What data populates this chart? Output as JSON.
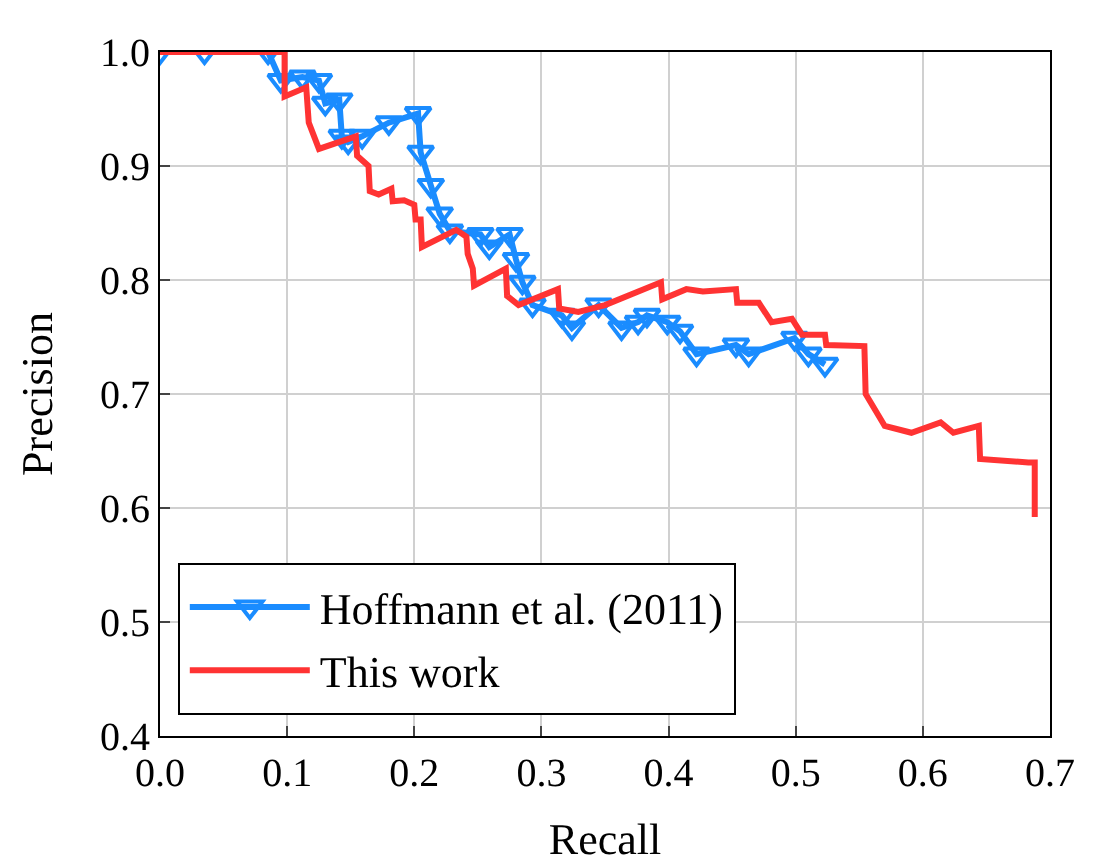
{
  "chart_data": {
    "type": "line",
    "xlabel": "Recall",
    "ylabel": "Precision",
    "xlim": [
      0,
      0.7
    ],
    "ylim": [
      0.4,
      1.0
    ],
    "xticks": [
      {
        "value": 0,
        "label": "0.0"
      },
      0.1,
      0.2,
      0.3,
      0.4,
      0.5,
      0.6,
      0.7
    ],
    "yticks": [
      0.4,
      0.5,
      0.6,
      0.7,
      0.8,
      0.9,
      {
        "value": 1,
        "label": "1.0"
      }
    ],
    "grid": true,
    "legend": "bottom left",
    "line_style": "solid",
    "series": [
      {
        "name": "Hoffmann et al. (2011)",
        "color": "#1a8cff",
        "marker": "triangle",
        "x": [
          0,
          0.035,
          0.085,
          0.095,
          0.112,
          0.125,
          0.13,
          0.141,
          0.143,
          0.148,
          0.159,
          0.18,
          0.203,
          0.205,
          0.213,
          0.22,
          0.228,
          0.252,
          0.259,
          0.275,
          0.28,
          0.285,
          0.293,
          0.316,
          0.324,
          0.345,
          0.363,
          0.376,
          0.383,
          0.399,
          0.409,
          0.422,
          0.453,
          0.463,
          0.499,
          0.51,
          0.523
        ],
        "values": [
          1,
          1,
          1,
          0.975,
          0.978,
          0.975,
          0.955,
          0.958,
          0.926,
          0.921,
          0.926,
          0.938,
          0.946,
          0.912,
          0.883,
          0.858,
          0.843,
          0.84,
          0.829,
          0.84,
          0.818,
          0.798,
          0.778,
          0.769,
          0.758,
          0.778,
          0.758,
          0.763,
          0.769,
          0.763,
          0.755,
          0.735,
          0.743,
          0.735,
          0.749,
          0.735,
          0.726
        ]
      },
      {
        "name": "This work",
        "color": "#ff3333",
        "marker": "none",
        "x": [
          0,
          0.098,
          0.098,
          0.115,
          0.117,
          0.125,
          0.154,
          0.155,
          0.164,
          0.165,
          0.172,
          0.182,
          0.183,
          0.192,
          0.2,
          0.201,
          0.205,
          0.206,
          0.233,
          0.241,
          0.242,
          0.246,
          0.247,
          0.272,
          0.273,
          0.282,
          0.313,
          0.314,
          0.329,
          0.35,
          0.394,
          0.395,
          0.414,
          0.427,
          0.453,
          0.454,
          0.471,
          0.481,
          0.497,
          0.505,
          0.523,
          0.524,
          0.554,
          0.555,
          0.57,
          0.591,
          0.614,
          0.624,
          0.644,
          0.645,
          0.683,
          0.688,
          0.688
        ],
        "values": [
          1,
          1,
          0.961,
          0.969,
          0.938,
          0.915,
          0.926,
          0.909,
          0.9,
          0.878,
          0.875,
          0.88,
          0.869,
          0.87,
          0.866,
          0.853,
          0.853,
          0.829,
          0.844,
          0.838,
          0.823,
          0.81,
          0.795,
          0.81,
          0.786,
          0.778,
          0.792,
          0.775,
          0.772,
          0.778,
          0.798,
          0.783,
          0.792,
          0.79,
          0.792,
          0.78,
          0.78,
          0.763,
          0.766,
          0.752,
          0.752,
          0.743,
          0.742,
          0.7,
          0.672,
          0.666,
          0.675,
          0.666,
          0.672,
          0.643,
          0.64,
          0.64,
          0.592
        ]
      }
    ]
  }
}
